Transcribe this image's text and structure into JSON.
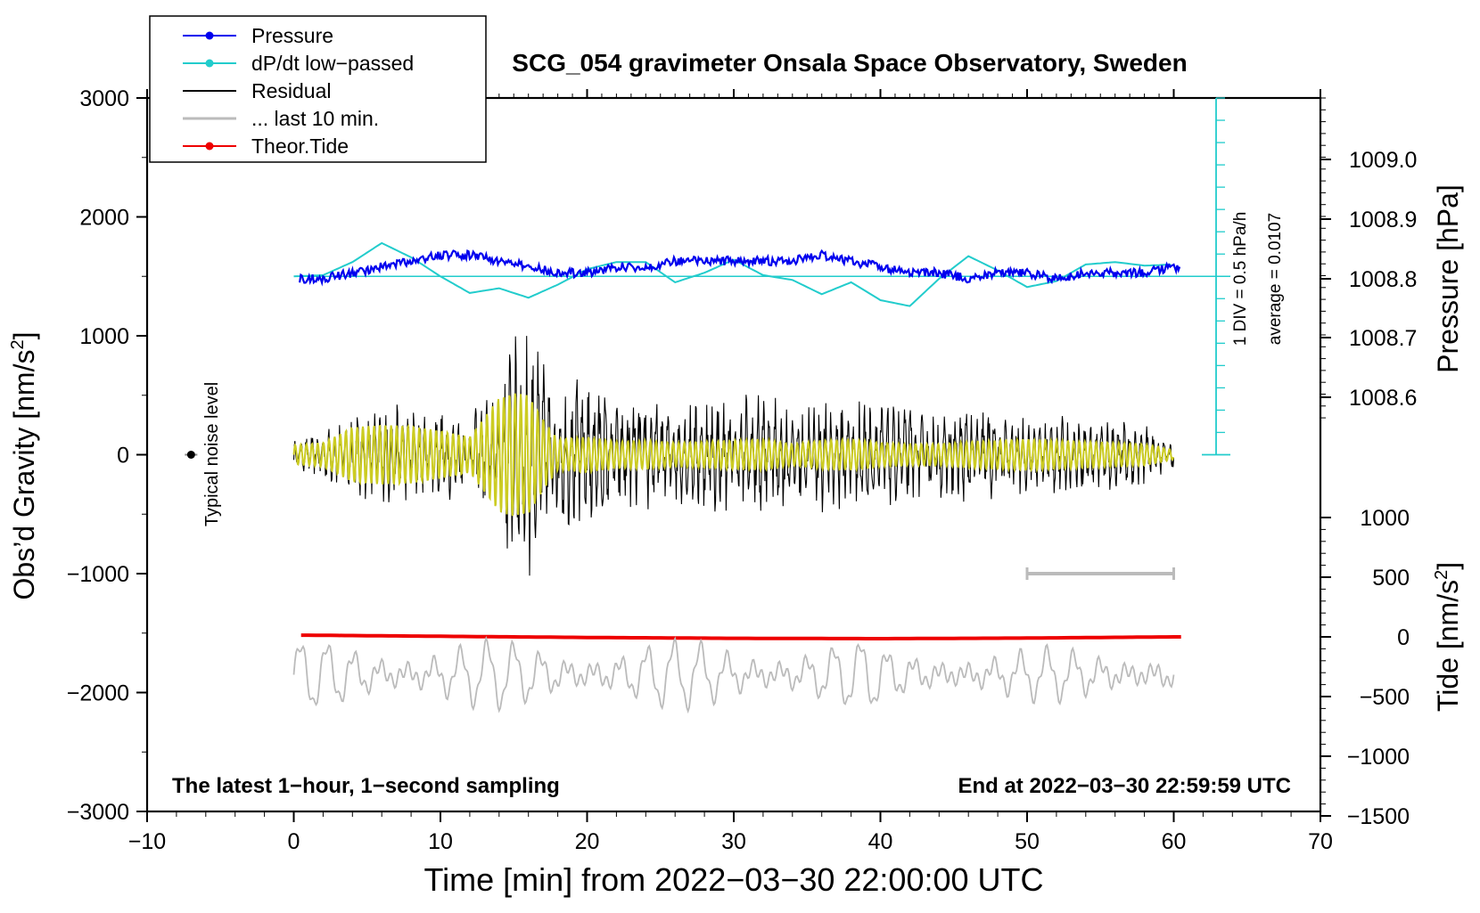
{
  "chart_data": {
    "type": "line",
    "title": "SCG_054 gravimeter Onsala Space Observatory, Sweden",
    "xlabel": "Time [min] from 2022−03−30 22:00:00 UTC",
    "ylabel_main": "Obs’d Gravity [nm/s",
    "ylabel_unit_tail": "]",
    "ylabel_pressure": "Pressure [hPa]",
    "ylabel_tide": "Tide [nm/s",
    "superscript": "2",
    "note_left": "The latest 1−hour, 1−second sampling",
    "note_right": "End at 2022−03−30 22:59:59 UTC",
    "noise_label": "Typical noise level",
    "scale_div_label": "1 DIV = 0.5 hPa/h",
    "scale_avg_label": "average = 0.0107",
    "xlim": [
      -10,
      70
    ],
    "ylim": [
      -3000,
      3000
    ],
    "x_ticks": [
      -10,
      0,
      10,
      20,
      30,
      40,
      50,
      60,
      70
    ],
    "x_tick_labels": [
      "−10",
      "0",
      "10",
      "20",
      "30",
      "40",
      "50",
      "60",
      "70"
    ],
    "y_ticks": [
      -3000,
      -2000,
      -1000,
      0,
      1000,
      2000,
      3000
    ],
    "y_tick_labels": [
      "−3000",
      "−2000",
      "−1000",
      "0",
      "1000",
      "2000",
      "3000"
    ],
    "pressure_ticks": [
      1008.6,
      1008.7,
      1008.8,
      1008.9,
      1009.0
    ],
    "pressure_tick_labels": [
      "1008.6",
      "1008.7",
      "1008.8",
      "1008.9",
      "1009.0"
    ],
    "pressure_axis_range": [
      1008.5,
      1009.1
    ],
    "tide_ticks": [
      -1500,
      -1000,
      -500,
      0,
      500,
      1000
    ],
    "tide_tick_labels": [
      "−1500",
      "−1000",
      "−500",
      "0",
      "500",
      "1000"
    ],
    "tide_axis_range": [
      -1500,
      1500
    ],
    "legend": [
      {
        "label": "Pressure",
        "color": "#0000ee",
        "marker": true
      },
      {
        "label": "dP/dt low−passed",
        "color": "#22cccc",
        "marker": true
      },
      {
        "label": "Residual",
        "color": "#000000",
        "marker": false
      },
      {
        "label": "... last 10 min.",
        "color": "#bbbbbb",
        "marker": false
      },
      {
        "label": "Theor.Tide",
        "color": "#ee0000",
        "marker": true
      }
    ],
    "pressure_series": {
      "name": "Pressure",
      "color": "#0000ee",
      "unit": "hPa",
      "x": [
        0,
        2,
        4,
        6,
        8,
        10,
        12,
        14,
        16,
        18,
        20,
        22,
        24,
        26,
        28,
        30,
        32,
        34,
        36,
        38,
        40,
        42,
        44,
        46,
        48,
        50,
        52,
        54,
        56,
        58,
        60
      ],
      "values": [
        1008.8,
        1008.8,
        1008.81,
        1008.82,
        1008.83,
        1008.84,
        1008.84,
        1008.83,
        1008.82,
        1008.81,
        1008.81,
        1008.82,
        1008.82,
        1008.83,
        1008.83,
        1008.83,
        1008.83,
        1008.83,
        1008.84,
        1008.83,
        1008.82,
        1008.81,
        1008.81,
        1008.8,
        1008.81,
        1008.81,
        1008.8,
        1008.81,
        1008.81,
        1008.81,
        1008.82
      ]
    },
    "dpdt_series": {
      "name": "dP/dt low-passed",
      "color": "#22cccc",
      "unit": "nm/s2 plot units",
      "x": [
        0,
        2,
        4,
        6,
        8,
        10,
        12,
        14,
        16,
        18,
        20,
        22,
        24,
        26,
        28,
        30,
        32,
        34,
        36,
        38,
        40,
        42,
        44,
        46,
        48,
        50,
        52,
        54,
        56,
        58,
        60
      ],
      "values": [
        1500,
        1510,
        1620,
        1780,
        1660,
        1500,
        1360,
        1400,
        1320,
        1430,
        1560,
        1620,
        1620,
        1450,
        1530,
        1640,
        1510,
        1470,
        1350,
        1450,
        1300,
        1250,
        1480,
        1670,
        1550,
        1410,
        1460,
        1600,
        1620,
        1590,
        1600
      ]
    },
    "baseline_value": 1500,
    "residual_envelope": {
      "name": "Residual",
      "x": [
        0,
        2,
        4,
        6,
        8,
        10,
        12,
        14,
        15,
        16,
        17,
        18,
        20,
        22,
        24,
        26,
        28,
        30,
        32,
        34,
        36,
        38,
        40,
        42,
        44,
        46,
        48,
        50,
        52,
        54,
        56,
        58,
        60
      ],
      "amplitude": [
        120,
        200,
        380,
        450,
        400,
        400,
        350,
        700,
        1000,
        1050,
        800,
        600,
        700,
        450,
        500,
        400,
        500,
        500,
        600,
        400,
        500,
        500,
        450,
        400,
        380,
        420,
        400,
        320,
        350,
        300,
        320,
        250,
        130
      ]
    },
    "filtered_envelope": {
      "name": "Residual low-passed",
      "color": "#cccc22",
      "x": [
        0,
        2,
        4,
        6,
        8,
        10,
        12,
        14,
        15,
        16,
        17,
        18,
        20,
        22,
        24,
        26,
        28,
        30,
        32,
        34,
        36,
        38,
        40,
        42,
        44,
        46,
        48,
        50,
        52,
        54,
        56,
        58,
        60
      ],
      "amplitude": [
        80,
        100,
        230,
        250,
        240,
        200,
        150,
        480,
        520,
        500,
        300,
        130,
        150,
        110,
        120,
        100,
        110,
        120,
        130,
        90,
        120,
        130,
        100,
        90,
        90,
        110,
        120,
        130,
        120,
        110,
        100,
        90,
        40
      ]
    },
    "tide_series": {
      "name": "Theor.Tide",
      "color": "#ee0000",
      "unit": "nm/s2",
      "x": [
        0,
        10,
        20,
        30,
        40,
        50,
        60
      ],
      "values": [
        15,
        5,
        -5,
        -12,
        -15,
        -10,
        0
      ]
    },
    "last10_series": {
      "name": "... last 10 min.",
      "color": "#bbbbbb",
      "t_range_min": [
        50,
        60
      ],
      "offset_value": -1850
    },
    "range_bar": {
      "x_range": [
        50,
        60
      ],
      "value": -1000
    },
    "noise_level": {
      "x": -7,
      "value": 0
    }
  }
}
